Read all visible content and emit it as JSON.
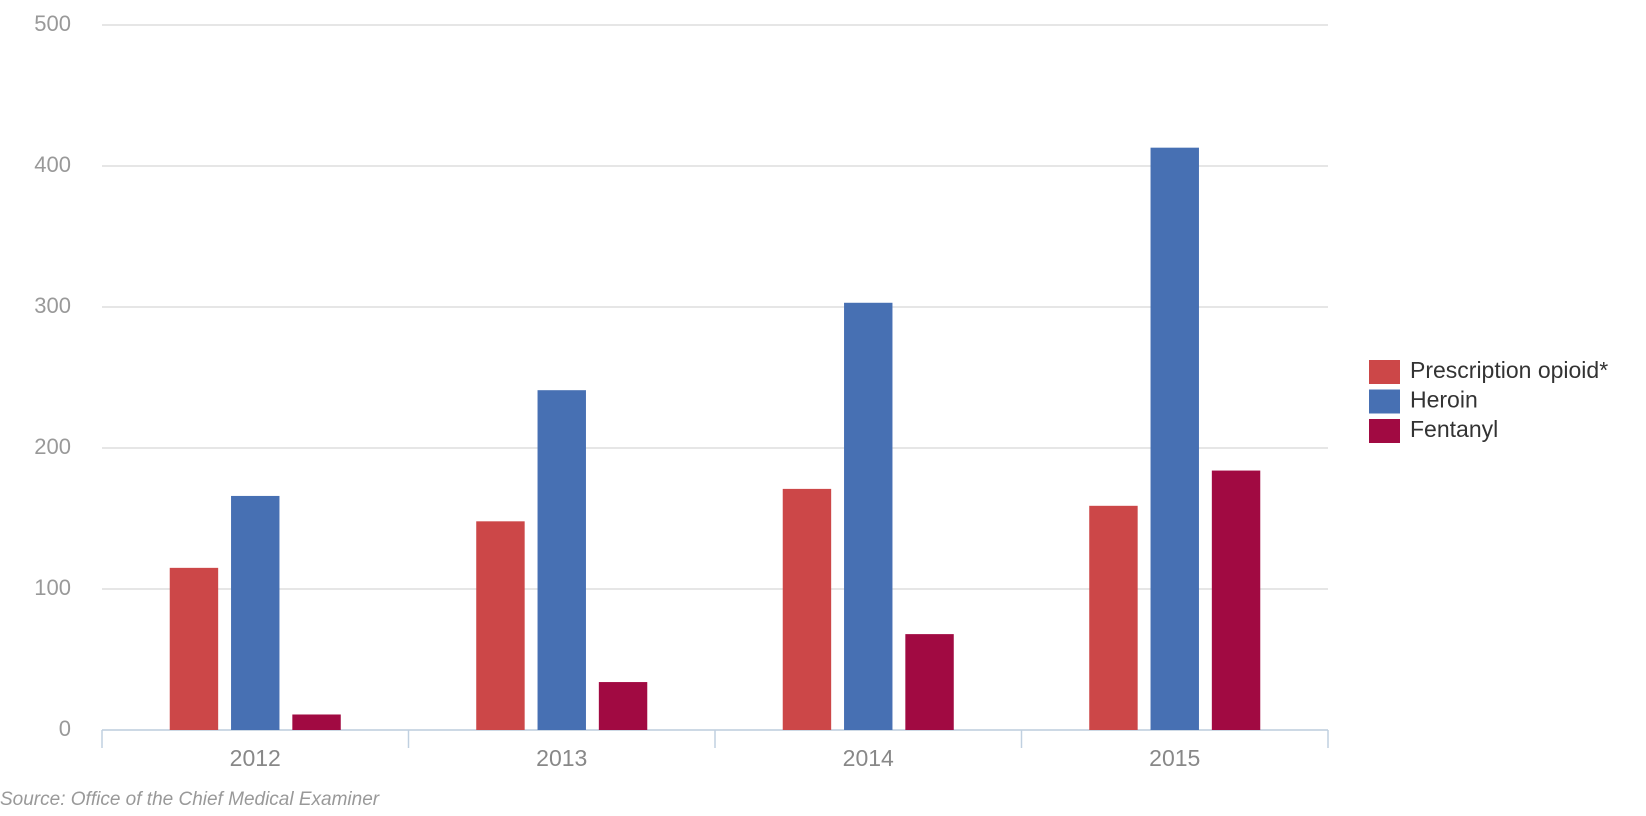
{
  "chart_data": {
    "type": "bar",
    "categories": [
      "2012",
      "2013",
      "2014",
      "2015"
    ],
    "series": [
      {
        "name": "Prescription opioid*",
        "color": "#cc4748",
        "values": [
          115,
          148,
          171,
          159
        ]
      },
      {
        "name": "Heroin",
        "color": "#4770b3",
        "values": [
          166,
          241,
          303,
          413
        ]
      },
      {
        "name": "Fentanyl",
        "color": "#a10a42",
        "values": [
          11,
          34,
          68,
          184
        ]
      }
    ],
    "ylim": [
      0,
      500
    ],
    "yticks": [
      0,
      100,
      200,
      300,
      400,
      500
    ],
    "grid": true,
    "legend": "right",
    "source": "Source: Office of the Chief Medical Examiner"
  }
}
